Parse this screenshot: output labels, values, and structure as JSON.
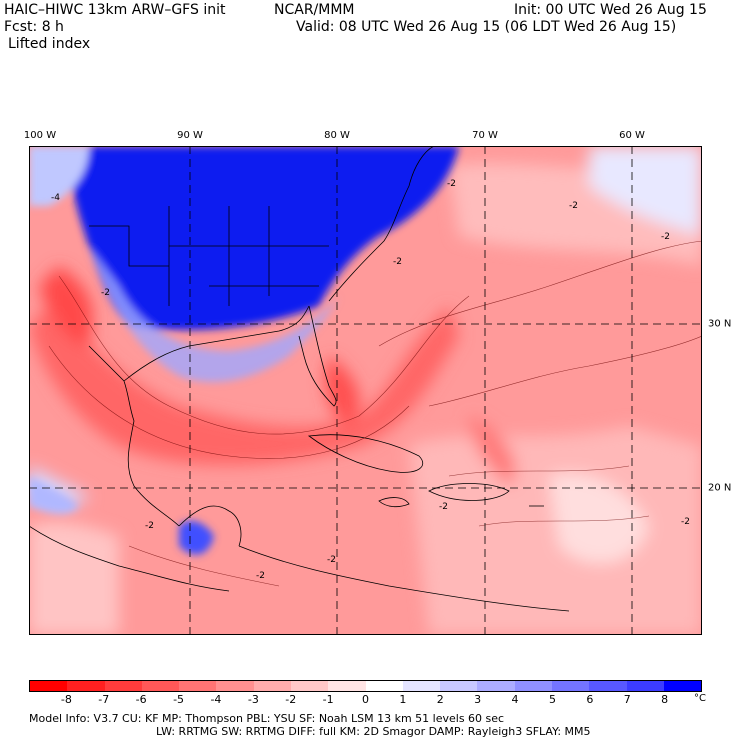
{
  "header": {
    "model": "HAIC–HIWC 13km ARW–GFS init",
    "org": "NCAR/MMM",
    "init": "Init: 00 UTC Wed 26 Aug 15",
    "fcst": "Fcst:    8 h",
    "valid": "Valid: 08 UTC Wed 26 Aug 15 (06 LDT Wed 26 Aug 15)",
    "field": "Lifted index"
  },
  "map": {
    "lon_labels": [
      "100 W",
      "90 W",
      "80 W",
      "70 W",
      "60 W"
    ],
    "lat_labels": [
      "30 N",
      "20 N"
    ],
    "contour_labels": [
      "-4",
      "-2",
      "-2",
      "-2",
      "-2",
      "-2",
      "-2",
      "-2",
      "-2",
      "-2",
      "-2"
    ]
  },
  "colorbar": {
    "labels": [
      "-8",
      "-7",
      "-6",
      "-5",
      "-4",
      "-3",
      "-2",
      "-1",
      "0",
      "1",
      "2",
      "3",
      "4",
      "5",
      "6",
      "7",
      "8"
    ],
    "unit": "°C",
    "colors": [
      "#ff0000",
      "#ff2020",
      "#ff3c3c",
      "#ff5858",
      "#ff7474",
      "#ff9090",
      "#ffacac",
      "#ffc8c8",
      "#ffe4e4",
      "#ffffff",
      "#e4e4ff",
      "#c8c8ff",
      "#acacff",
      "#9090ff",
      "#7474ff",
      "#5858ff",
      "#3c3cff",
      "#0000ff"
    ]
  },
  "model_info": {
    "line1": "Model Info: V3.7        CU: KF        MP: Thompson     PBL: YSU        SF: Noah LSM     13 km    51 levels    60 sec",
    "line2": "LW: RRTMG    SW: RRTMG  DIFF: full   KM: 2D Smagor DAMP: Rayleigh3   SFLAY: MM5"
  }
}
